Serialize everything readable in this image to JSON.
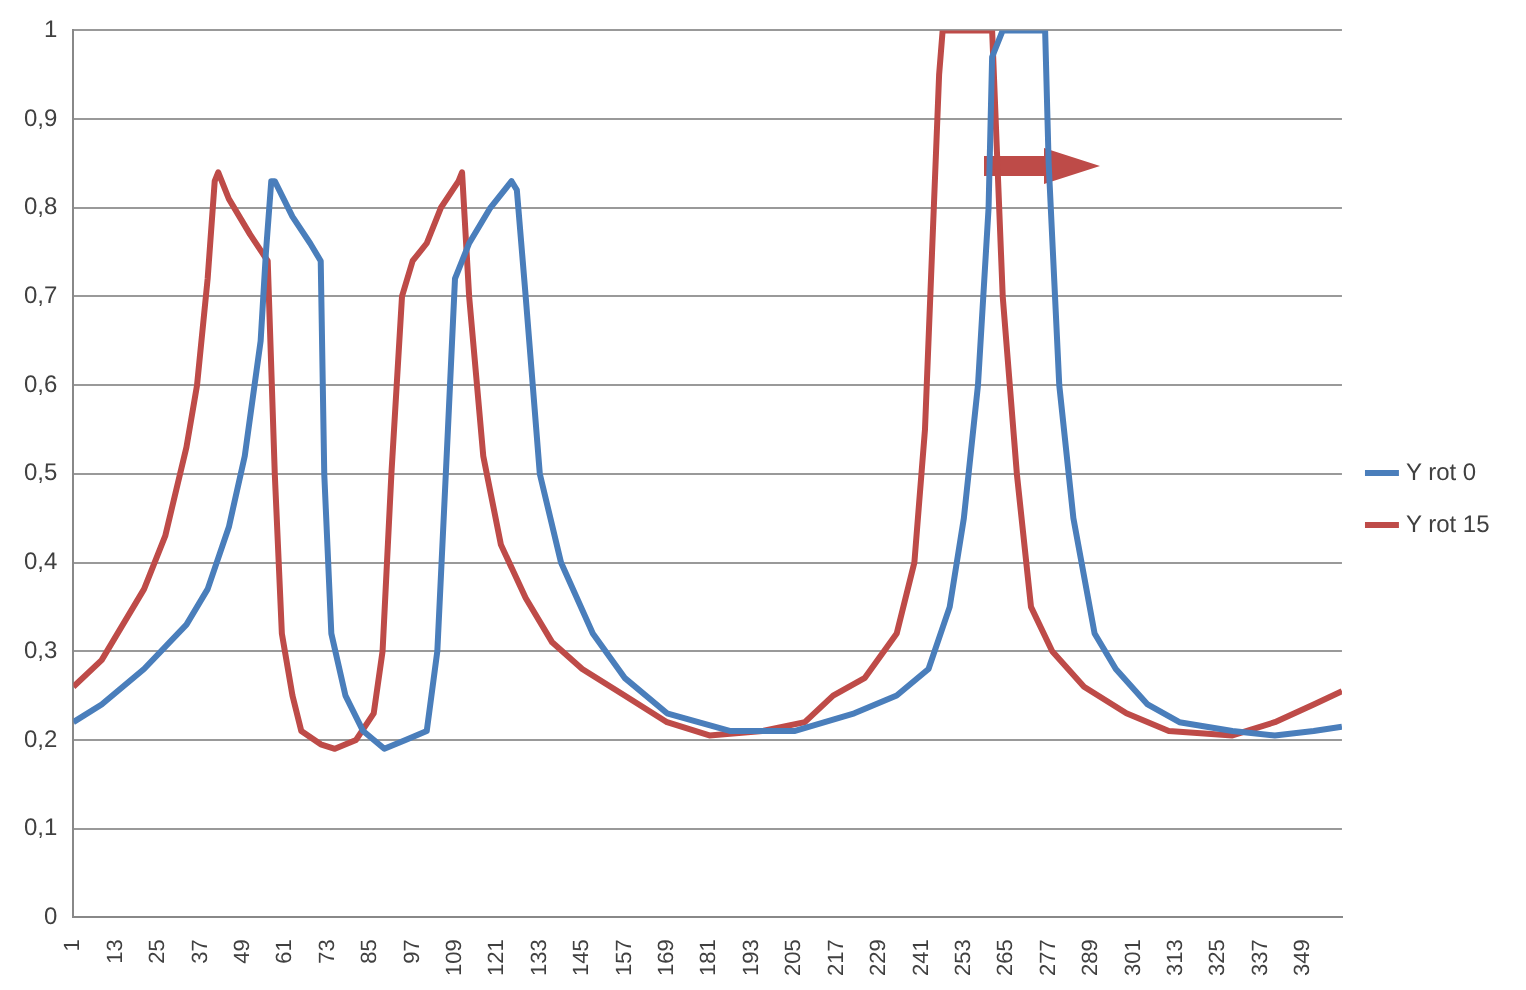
{
  "chart_data": {
    "type": "line",
    "legend": "right",
    "grid": "y",
    "marker": "none",
    "line_style": "solid",
    "xlim": [
      1,
      360
    ],
    "xticks": [
      1,
      13,
      25,
      37,
      49,
      61,
      73,
      85,
      97,
      109,
      121,
      133,
      145,
      157,
      169,
      181,
      193,
      205,
      217,
      229,
      241,
      253,
      265,
      277,
      289,
      301,
      313,
      325,
      337,
      349
    ],
    "ylim": [
      0,
      1
    ],
    "yticks": [
      0,
      {
        "value": 0.1,
        "label": "0,1"
      },
      {
        "value": 0.2,
        "label": "0,2"
      },
      {
        "value": 0.3,
        "label": "0,3"
      },
      {
        "value": 0.4,
        "label": "0,4"
      },
      {
        "value": 0.5,
        "label": "0,5"
      },
      {
        "value": 0.6,
        "label": "0,6"
      },
      {
        "value": 0.7,
        "label": "0,7"
      },
      {
        "value": 0.8,
        "label": "0,8"
      },
      {
        "value": 0.9,
        "label": "0,9"
      },
      1
    ],
    "series": [
      {
        "name": "Y rot 0",
        "color": "#4a7ebb",
        "x": [
          1,
          9,
          21,
          33,
          39,
          45,
          49.5,
          54,
          55.5,
          57,
          58,
          63,
          68,
          71,
          72,
          74,
          78,
          83,
          89,
          95,
          101,
          104,
          107,
          109,
          113,
          119,
          125,
          126.5,
          129,
          133,
          139,
          148,
          157,
          169,
          187,
          205,
          222,
          234,
          243,
          249,
          253,
          257,
          260,
          261,
          264,
          276,
          277,
          280,
          284,
          290,
          296,
          305,
          314,
          329,
          341,
          352,
          360
        ],
        "values": [
          0.22,
          0.24,
          0.28,
          0.33,
          0.37,
          0.44,
          0.52,
          0.65,
          0.75,
          0.83,
          0.83,
          0.79,
          0.76,
          0.74,
          0.5,
          0.32,
          0.25,
          0.21,
          0.19,
          0.2,
          0.21,
          0.3,
          0.55,
          0.72,
          0.76,
          0.8,
          0.83,
          0.82,
          0.7,
          0.5,
          0.4,
          0.32,
          0.27,
          0.23,
          0.21,
          0.21,
          0.23,
          0.25,
          0.28,
          0.35,
          0.45,
          0.6,
          0.8,
          0.97,
          1,
          1,
          0.85,
          0.6,
          0.45,
          0.32,
          0.28,
          0.24,
          0.22,
          0.21,
          0.205,
          0.21,
          0.215
        ]
      },
      {
        "name": "Y rot 15",
        "color": "#be4b48",
        "x": [
          1,
          9,
          15,
          21,
          27,
          33,
          36,
          39,
          41,
          42,
          45,
          51,
          56,
          58,
          60,
          63,
          65.5,
          71,
          75,
          81,
          86,
          88.5,
          91,
          94,
          97,
          101,
          105,
          110,
          111,
          113,
          117,
          122,
          129,
          136.5,
          145,
          157,
          169,
          181,
          196,
          208,
          216,
          225,
          234,
          239,
          242,
          244,
          246,
          247,
          261,
          264,
          268,
          272,
          278,
          287,
          299,
          311,
          329,
          341,
          352,
          360
        ],
        "values": [
          0.26,
          0.29,
          0.33,
          0.37,
          0.43,
          0.53,
          0.6,
          0.72,
          0.83,
          0.84,
          0.81,
          0.77,
          0.74,
          0.5,
          0.32,
          0.25,
          0.21,
          0.195,
          0.19,
          0.2,
          0.23,
          0.3,
          0.5,
          0.7,
          0.74,
          0.76,
          0.8,
          0.83,
          0.84,
          0.7,
          0.52,
          0.42,
          0.36,
          0.31,
          0.28,
          0.25,
          0.22,
          0.205,
          0.21,
          0.22,
          0.25,
          0.27,
          0.32,
          0.4,
          0.55,
          0.75,
          0.95,
          1,
          1,
          0.7,
          0.5,
          0.35,
          0.3,
          0.26,
          0.23,
          0.21,
          0.205,
          0.22,
          0.24,
          0.255
        ]
      }
    ]
  }
}
